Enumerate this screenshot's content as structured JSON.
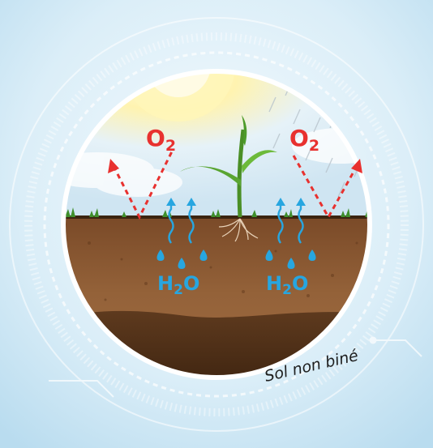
{
  "diagram": {
    "labels": {
      "oxygen_left": {
        "main": "O",
        "sub": "2"
      },
      "oxygen_right": {
        "main": "O",
        "sub": "2"
      },
      "water_left": {
        "main": "H",
        "sub": "2",
        "tail": "O"
      },
      "water_right": {
        "main": "H",
        "sub": "2",
        "tail": "O"
      },
      "caption": "Sol non biné"
    },
    "colors": {
      "oxygen": "#e8312f",
      "water": "#27a6e0",
      "soil_dark": "#5e3a1e",
      "soil": "#8a5a34",
      "grass": "#3f8f2c",
      "plant": "#5aa532",
      "sky": "#d7ecf7",
      "sun": "#fff6b8"
    },
    "icons": [
      "sun-icon",
      "rain-icon",
      "plant-icon",
      "water-drop-icon",
      "arrow-up-icon",
      "oxygen-arrow-icon"
    ]
  }
}
